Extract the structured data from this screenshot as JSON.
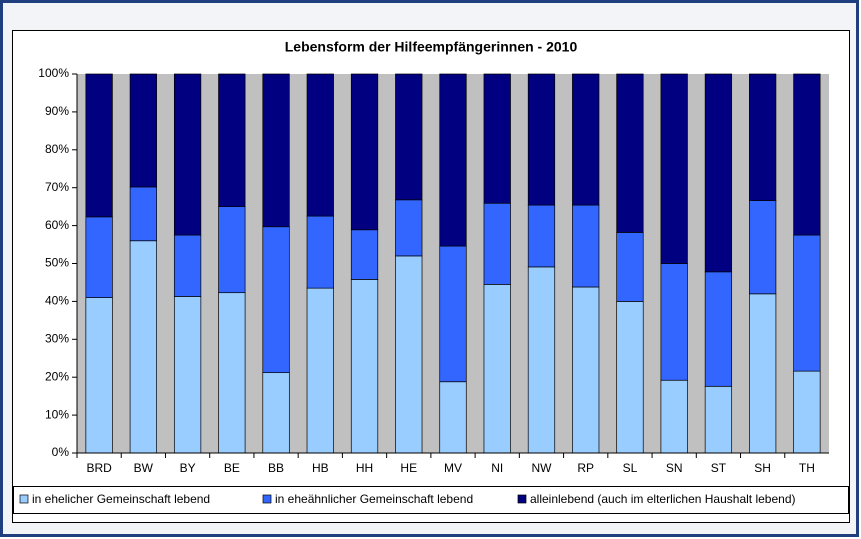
{
  "chart_data": {
    "type": "stacked_bar",
    "title": "Lebensform der Hilfeempfängerinnen - 2010",
    "categories": [
      "BRD",
      "BW",
      "BY",
      "BE",
      "BB",
      "HB",
      "HH",
      "HE",
      "MV",
      "NI",
      "NW",
      "RP",
      "SL",
      "SN",
      "ST",
      "SH",
      "TH"
    ],
    "series": [
      {
        "name": "in ehelicher Gemeinschaft lebend",
        "color": "#99ccff",
        "values": [
          41,
          56,
          41.3,
          42.3,
          21.2,
          43.5,
          45.8,
          52,
          18.8,
          44.5,
          49.1,
          43.8,
          40,
          19.2,
          17.6,
          42,
          21.6
        ]
      },
      {
        "name": "in eheähnlicher Gemeinschaft lebend",
        "color": "#3366ff",
        "values": [
          21.3,
          14.2,
          16.2,
          22.7,
          38.5,
          19,
          13.1,
          14.8,
          35.8,
          21.4,
          16.3,
          21.6,
          18.2,
          30.8,
          30.2,
          24.6,
          35.9
        ]
      },
      {
        "name": "alleinlebend (auch im elterlichen Haushalt lebend)",
        "color": "#000080",
        "values": [
          37.7,
          29.8,
          42.5,
          35,
          40.3,
          37.5,
          41.1,
          33.2,
          45.4,
          34.1,
          34.6,
          34.6,
          41.8,
          50,
          52.2,
          33.4,
          42.5
        ]
      }
    ],
    "ylim": [
      0,
      100
    ],
    "yticks": [
      {
        "value": 0,
        "label": "0%"
      },
      {
        "value": 10,
        "label": "10%"
      },
      {
        "value": 20,
        "label": "20%"
      },
      {
        "value": 30,
        "label": "30%"
      },
      {
        "value": 40,
        "label": "40%"
      },
      {
        "value": 50,
        "label": "50%"
      },
      {
        "value": 60,
        "label": "60%"
      },
      {
        "value": 70,
        "label": "70%"
      },
      {
        "value": 80,
        "label": "80%"
      },
      {
        "value": 90,
        "label": "90%"
      },
      {
        "value": 100,
        "label": "100%"
      }
    ],
    "plot_background": "#c0c0c0"
  }
}
